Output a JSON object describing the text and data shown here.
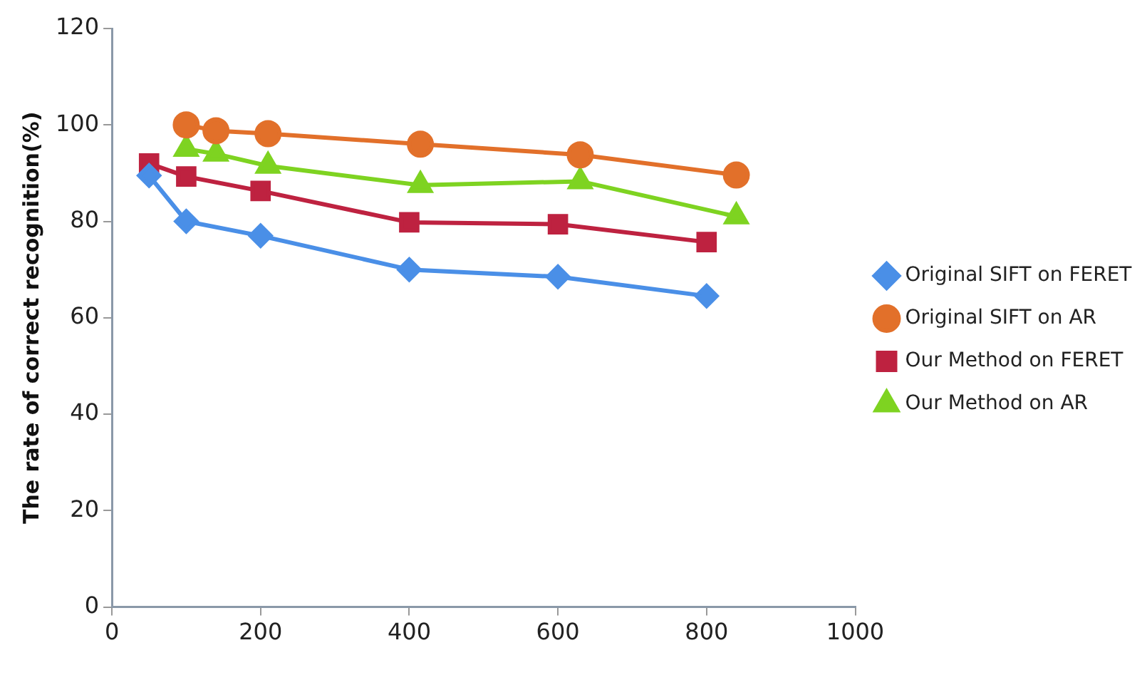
{
  "chart_data": {
    "type": "line",
    "ylabel": "The rate of correct recognition(%)",
    "xlim": [
      0,
      1000
    ],
    "xticks": [
      0,
      200,
      400,
      600,
      800,
      1000
    ],
    "ylim": [
      0,
      120
    ],
    "yticks": [
      0,
      20,
      40,
      60,
      80,
      100,
      120
    ],
    "grid": false,
    "legend": "right",
    "line_style": "solid",
    "series": [
      {
        "name": "Original SIFT on FERET",
        "color": "#4a8fe7",
        "marker": "diamond",
        "x": [
          50,
          100,
          200,
          400,
          600,
          800
        ],
        "values": [
          89.5,
          80,
          77,
          70,
          68.5,
          64.5
        ]
      },
      {
        "name": "Original SIFT on AR",
        "color": "#e2702a",
        "marker": "circle",
        "x": [
          100,
          140,
          210,
          415,
          630,
          840
        ],
        "values": [
          100,
          98.8,
          98.2,
          96,
          93.8,
          89.6
        ]
      },
      {
        "name": "Our Method on FERET",
        "color": "#be2240",
        "marker": "square",
        "x": [
          50,
          100,
          200,
          400,
          600,
          800
        ],
        "values": [
          92,
          89.3,
          86.3,
          79.8,
          79.4,
          75.7
        ]
      },
      {
        "name": "Our Method on AR",
        "color": "#7ed321",
        "marker": "triangle",
        "x": [
          100,
          140,
          210,
          415,
          630,
          840
        ],
        "values": [
          95,
          94,
          91.5,
          87.5,
          88.3,
          81
        ]
      }
    ]
  }
}
